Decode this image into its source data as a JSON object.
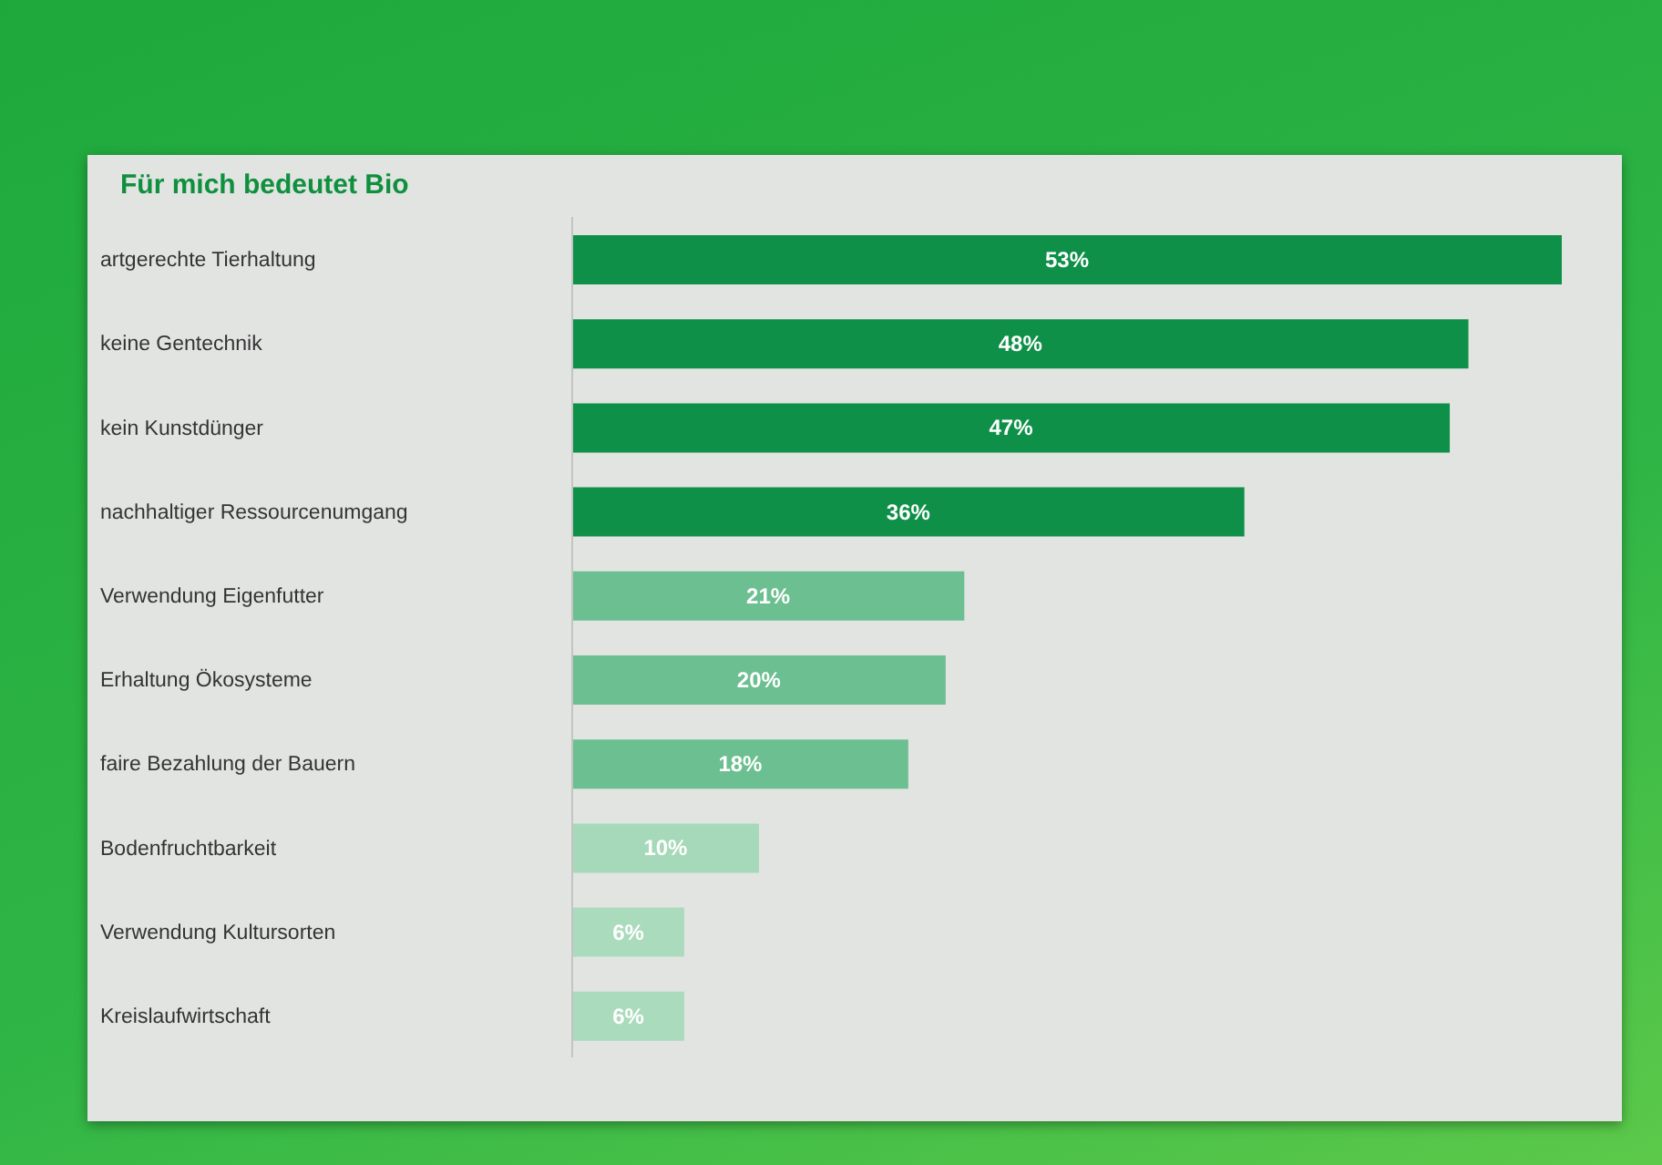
{
  "chart_data": {
    "type": "bar",
    "orientation": "horizontal",
    "title": "Für mich bedeutet Bio",
    "categories": [
      "artgerechte Tierhaltung",
      "keine Gentechnik",
      "kein Kunstdünger",
      "nachhaltiger Ressourcenumgang",
      "Verwendung Eigenfutter",
      "Erhaltung Ökosysteme",
      "faire Bezahlung der Bauern",
      "Bodenfruchtbarkeit",
      "Verwendung Kultursorten",
      "Kreislaufwirtschaft"
    ],
    "values": [
      53,
      48,
      47,
      36,
      21,
      20,
      18,
      10,
      6,
      6
    ],
    "value_labels": [
      "53%",
      "48%",
      "47%",
      "36%",
      "21%",
      "20%",
      "18%",
      "10%",
      "6%",
      "6%"
    ],
    "colors": [
      "#0f9048",
      "#0f9048",
      "#0f9048",
      "#0f9048",
      "#6cbf90",
      "#6cbf90",
      "#6cbf90",
      "#a6d9b9",
      "#a9dbbc",
      "#a9dbbc"
    ],
    "grid": false,
    "legend": false
  }
}
